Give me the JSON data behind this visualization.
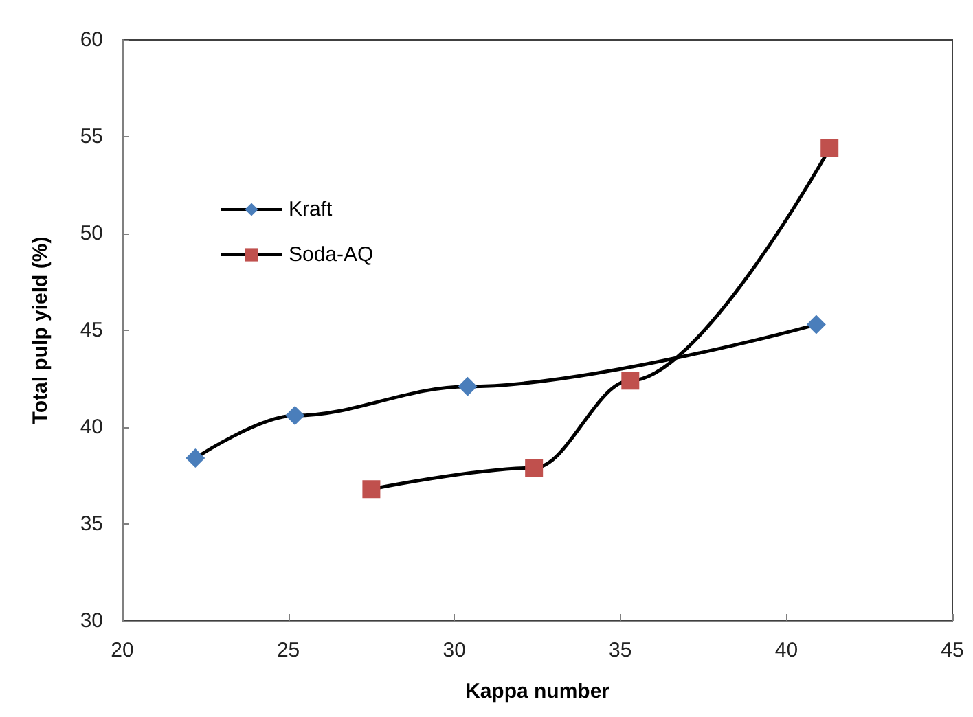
{
  "chart_data": {
    "type": "line",
    "xlabel": "Kappa number",
    "ylabel": "Total pulp yield (%)",
    "xlim": [
      20,
      45
    ],
    "xticks": [
      20,
      25,
      30,
      35,
      40,
      45
    ],
    "ylim": [
      30,
      60
    ],
    "yticks": [
      30,
      35,
      40,
      45,
      50,
      55,
      60
    ],
    "grid": false,
    "legend": "top left",
    "line_style": "solid",
    "series": [
      {
        "name": "Kraft",
        "color": "#4a7ebb",
        "marker": "diamond",
        "x": [
          22.2,
          25.2,
          30.4,
          40.9
        ],
        "values": [
          38.4,
          40.6,
          42.1,
          45.3
        ]
      },
      {
        "name": "Soda-AQ",
        "color": "#c0504d",
        "marker": "square",
        "x": [
          27.5,
          32.4,
          35.3,
          41.3
        ],
        "values": [
          36.8,
          37.9,
          42.4,
          54.4
        ]
      }
    ]
  }
}
